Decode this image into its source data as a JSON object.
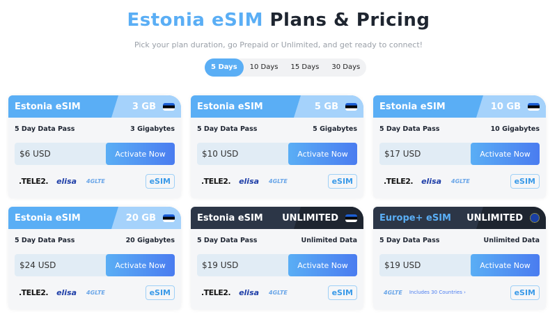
{
  "header": {
    "title_accent": "Estonia eSIM",
    "title_rest": "Plans & Pricing",
    "subtitle": "Pick your plan duration, go Prepaid or Unlimited, and get ready to connect!"
  },
  "tabs": [
    {
      "label": "5 Days",
      "active": true
    },
    {
      "label": "10 Days"
    },
    {
      "label": "15 Days"
    },
    {
      "label": "30 Days"
    }
  ],
  "colors": {
    "accent": "#5aaef5",
    "dark_header": "#2c3647"
  },
  "cards": [
    {
      "name": "Estonia eSIM",
      "data": "3 GB",
      "pass": "5 Day Data Pass",
      "amount": "3 Gigabytes",
      "price": "$6 USD",
      "button": "Activate Now",
      "flag": "estonia-flag",
      "carrier1": ".TELE2.",
      "carrier2": "elisa",
      "lte": "4GLTE",
      "badge": "eSIM"
    },
    {
      "name": "Estonia eSIM",
      "data": "5 GB",
      "pass": "5 Day Data Pass",
      "amount": "5 Gigabytes",
      "price": "$10 USD",
      "button": "Activate Now",
      "flag": "estonia-flag",
      "carrier1": ".TELE2.",
      "carrier2": "elisa",
      "lte": "4GLTE",
      "badge": "eSIM"
    },
    {
      "name": "Estonia eSIM",
      "data": "10 GB",
      "pass": "5 Day Data Pass",
      "amount": "10 Gigabytes",
      "price": "$17 USD",
      "button": "Activate Now",
      "flag": "estonia-flag",
      "carrier1": ".TELE2.",
      "carrier2": "elisa",
      "lte": "4GLTE",
      "badge": "eSIM"
    },
    {
      "name": "Estonia eSIM",
      "data": "20 GB",
      "pass": "5 Day Data Pass",
      "amount": "20 Gigabytes",
      "price": "$24 USD",
      "button": "Activate Now",
      "flag": "estonia-flag",
      "carrier1": ".TELE2.",
      "carrier2": "elisa",
      "lte": "4GLTE",
      "badge": "eSIM"
    },
    {
      "name": "Estonia eSIM",
      "data": "UNLIMITED",
      "pass": "5 Day Data Pass",
      "amount": "Unlimited Data",
      "price": "$19 USD",
      "button": "Activate Now",
      "flag": "estonia-flag",
      "carrier1": ".TELE2.",
      "carrier2": "elisa",
      "lte": "4GLTE",
      "badge": "eSIM"
    },
    {
      "name": "Europe+ eSIM",
      "data": "UNLIMITED",
      "pass": "5 Day Data Pass",
      "amount": "Unlimited Data",
      "price": "$19 USD",
      "button": "Activate Now",
      "flag": "eu-flag",
      "lte": "4GLTE",
      "includes": "Includes 30 Countries ›",
      "badge": "eSIM"
    }
  ]
}
